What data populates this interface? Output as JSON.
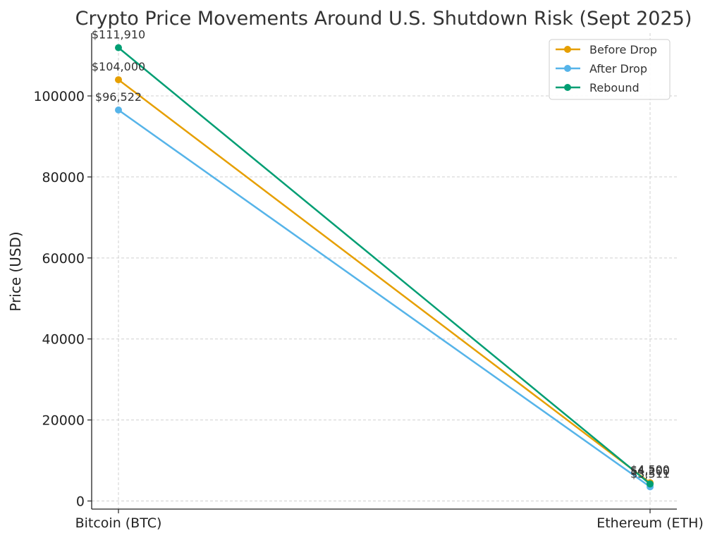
{
  "chart_data": {
    "type": "line",
    "title": "Crypto Price Movements Around U.S. Shutdown Risk (Sept 2025)",
    "xlabel": "",
    "ylabel": "Price (USD)",
    "categories": [
      "Bitcoin (BTC)",
      "Ethereum (ETH)"
    ],
    "yticks": [
      "0",
      "20000",
      "40000",
      "60000",
      "80000",
      "100000"
    ],
    "ylim": [
      -2000,
      115500
    ],
    "grid": true,
    "legend_position": "top-right",
    "series": [
      {
        "name": "Before Drop",
        "color": "#E69F00",
        "values": [
          104000,
          4500
        ],
        "labels": [
          "$104,000",
          "$4,500"
        ]
      },
      {
        "name": "After Drop",
        "color": "#56B4E9",
        "values": [
          96522,
          3511
        ],
        "labels": [
          "$96,522",
          "$3,511"
        ]
      },
      {
        "name": "Rebound",
        "color": "#009E73",
        "values": [
          111910,
          4200
        ],
        "labels": [
          "$111,910",
          "$4,200"
        ]
      }
    ]
  }
}
